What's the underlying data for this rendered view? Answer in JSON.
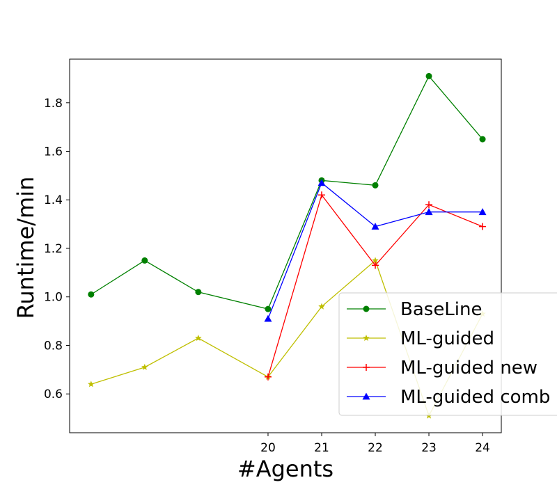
{
  "chart_data": {
    "type": "line",
    "xlabel": "#Agents",
    "ylabel": "Runtime/min",
    "xlim": [
      16.3,
      24.35
    ],
    "ylim": [
      0.44,
      1.98
    ],
    "x_ticks": [
      20,
      21,
      22,
      23,
      24
    ],
    "x_tick_labels": [
      "20",
      "21",
      "22",
      "23",
      "24"
    ],
    "y_ticks": [
      0.6,
      0.8,
      1.0,
      1.2,
      1.4,
      1.6,
      1.8
    ],
    "y_tick_labels": [
      "0.6",
      "0.8",
      "1.0",
      "1.2",
      "1.4",
      "1.6",
      "1.8"
    ],
    "grid": false,
    "legend": "lower-right",
    "series": [
      {
        "name": "BaseLine",
        "color": "#008000",
        "marker": "circle",
        "points": [
          [
            16.7,
            1.01
          ],
          [
            17.7,
            1.15
          ],
          [
            18.7,
            1.02
          ],
          [
            20,
            0.95
          ],
          [
            21,
            1.48
          ],
          [
            22,
            1.46
          ],
          [
            23,
            1.91
          ],
          [
            24,
            1.65
          ]
        ]
      },
      {
        "name": "ML-guided",
        "color": "#bfbf00",
        "marker": "star",
        "points": [
          [
            16.7,
            0.64
          ],
          [
            17.7,
            0.71
          ],
          [
            18.7,
            0.83
          ],
          [
            20,
            0.67
          ],
          [
            21,
            0.96
          ],
          [
            22,
            1.15
          ],
          [
            23,
            0.51
          ],
          [
            24,
            0.93
          ]
        ]
      },
      {
        "name": "ML-guided new",
        "color": "#ff0000",
        "marker": "plus",
        "points": [
          [
            20,
            0.67
          ],
          [
            21,
            1.42
          ],
          [
            22,
            1.13
          ],
          [
            23,
            1.38
          ],
          [
            24,
            1.29
          ]
        ]
      },
      {
        "name": "ML-guided comb",
        "color": "#0000ff",
        "marker": "triangle",
        "points": [
          [
            20,
            0.91
          ],
          [
            21,
            1.47
          ],
          [
            22,
            1.29
          ],
          [
            23,
            1.35
          ],
          [
            24,
            1.35
          ]
        ]
      }
    ]
  }
}
